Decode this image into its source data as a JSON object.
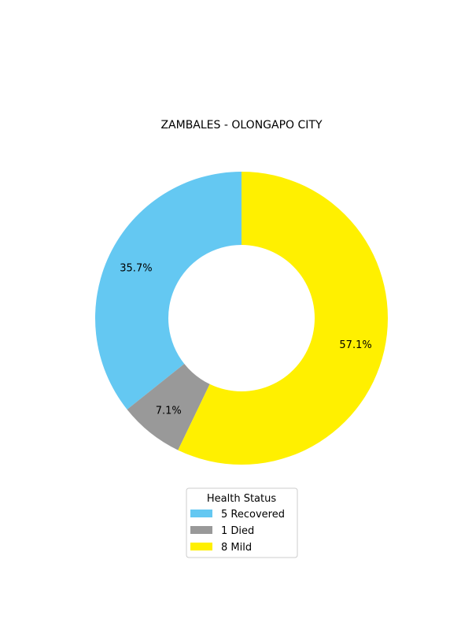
{
  "chart_data": {
    "type": "pie",
    "title": "ZAMBALES - OLONGAPO CITY",
    "donut": true,
    "categories": [
      "Recovered",
      "Died",
      "Mild"
    ],
    "values": [
      5,
      1,
      8
    ],
    "percent_labels": [
      "35.7%",
      "7.1%",
      "57.1%"
    ],
    "colors": [
      "#64c8f2",
      "#999999",
      "#fff000"
    ],
    "legend": {
      "title": "Health Status",
      "placement": "bottom-center",
      "entries": [
        {
          "count": "5",
          "label": "Recovered"
        },
        {
          "count": "1",
          "label": "Died"
        },
        {
          "count": "8",
          "label": "Mild"
        }
      ]
    }
  }
}
